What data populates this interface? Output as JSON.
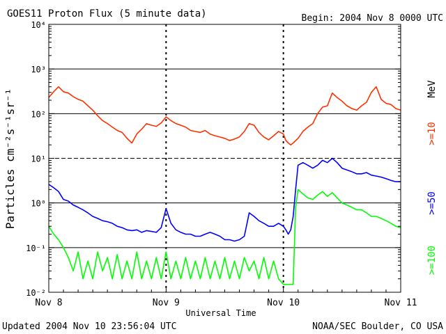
{
  "title": "GOES11 Proton Flux (5 minute data)",
  "begin_label": "Begin: 2004 Nov 8 0000 UTC",
  "updated_label": "Updated 2004 Nov 10 23:56:04 UTC",
  "credit_label": "NOAA/SEC Boulder, CO USA",
  "colors": {
    "ten_mev": "#ff3000",
    "fifty_mev": "#0000ff",
    "hundred_mev": "#00ff00"
  },
  "chart_data": {
    "type": "line",
    "title": "GOES11 Proton Flux (5 minute data)",
    "xlabel": "Universal Time",
    "ylabel": "Particles cm⁻²s⁻¹sr⁻¹",
    "y_scale": "log",
    "xlim": [
      0,
      72
    ],
    "ylim": [
      0.01,
      10000
    ],
    "x_ticks": [
      {
        "hour": 0,
        "label": "Nov 8"
      },
      {
        "hour": 24,
        "label": "Nov 9"
      },
      {
        "hour": 48,
        "label": "Nov 10"
      },
      {
        "hour": 72,
        "label": "Nov 11"
      }
    ],
    "y_ticks": [
      {
        "value": 0.01,
        "label": "10⁻²"
      },
      {
        "value": 0.1,
        "label": "10⁻¹"
      },
      {
        "value": 1,
        "label": "10⁰"
      },
      {
        "value": 10,
        "label": "10¹"
      },
      {
        "value": 100,
        "label": "10²"
      },
      {
        "value": 1000,
        "label": "10³"
      },
      {
        "value": 10000,
        "label": "10⁴"
      }
    ],
    "energy_unit": "MeV",
    "series": [
      {
        "name": ">=10",
        "color": "#ff3000",
        "points": [
          [
            0,
            230
          ],
          [
            1,
            310
          ],
          [
            2,
            400
          ],
          [
            3,
            310
          ],
          [
            4,
            290
          ],
          [
            5,
            240
          ],
          [
            6,
            210
          ],
          [
            7,
            190
          ],
          [
            8,
            150
          ],
          [
            9,
            120
          ],
          [
            10,
            90
          ],
          [
            11,
            70
          ],
          [
            12,
            60
          ],
          [
            13,
            50
          ],
          [
            14,
            42
          ],
          [
            15,
            38
          ],
          [
            16,
            28
          ],
          [
            17,
            22
          ],
          [
            18,
            35
          ],
          [
            19,
            45
          ],
          [
            20,
            60
          ],
          [
            21,
            55
          ],
          [
            22,
            52
          ],
          [
            23,
            62
          ],
          [
            24,
            85
          ],
          [
            25,
            70
          ],
          [
            26,
            60
          ],
          [
            27,
            55
          ],
          [
            28,
            50
          ],
          [
            29,
            42
          ],
          [
            30,
            40
          ],
          [
            31,
            38
          ],
          [
            32,
            42
          ],
          [
            33,
            35
          ],
          [
            34,
            32
          ],
          [
            35,
            30
          ],
          [
            36,
            28
          ],
          [
            37,
            25
          ],
          [
            38,
            27
          ],
          [
            39,
            30
          ],
          [
            40,
            40
          ],
          [
            41,
            60
          ],
          [
            42,
            55
          ],
          [
            43,
            38
          ],
          [
            44,
            30
          ],
          [
            45,
            26
          ],
          [
            46,
            32
          ],
          [
            47,
            40
          ],
          [
            48,
            35
          ],
          [
            48.5,
            25
          ],
          [
            49,
            22
          ],
          [
            49.5,
            20
          ],
          [
            50,
            22
          ],
          [
            51,
            28
          ],
          [
            52,
            40
          ],
          [
            53,
            50
          ],
          [
            54,
            60
          ],
          [
            55,
            100
          ],
          [
            56,
            140
          ],
          [
            57,
            150
          ],
          [
            58,
            290
          ],
          [
            59,
            230
          ],
          [
            60,
            190
          ],
          [
            61,
            150
          ],
          [
            62,
            130
          ],
          [
            63,
            120
          ],
          [
            64,
            150
          ],
          [
            65,
            180
          ],
          [
            66,
            300
          ],
          [
            67,
            400
          ],
          [
            68,
            210
          ],
          [
            69,
            170
          ],
          [
            70,
            160
          ],
          [
            71,
            130
          ],
          [
            72,
            120
          ]
        ]
      },
      {
        "name": ">=50",
        "color": "#0000ff",
        "points": [
          [
            0,
            2.6
          ],
          [
            1,
            2.2
          ],
          [
            2,
            1.8
          ],
          [
            3,
            1.2
          ],
          [
            4,
            1.1
          ],
          [
            5,
            0.9
          ],
          [
            6,
            0.8
          ],
          [
            7,
            0.7
          ],
          [
            8,
            0.6
          ],
          [
            9,
            0.5
          ],
          [
            10,
            0.45
          ],
          [
            11,
            0.4
          ],
          [
            12,
            0.38
          ],
          [
            13,
            0.35
          ],
          [
            14,
            0.3
          ],
          [
            15,
            0.28
          ],
          [
            16,
            0.25
          ],
          [
            17,
            0.24
          ],
          [
            18,
            0.25
          ],
          [
            19,
            0.22
          ],
          [
            20,
            0.24
          ],
          [
            21,
            0.23
          ],
          [
            22,
            0.22
          ],
          [
            23,
            0.28
          ],
          [
            24,
            0.75
          ],
          [
            25,
            0.35
          ],
          [
            26,
            0.25
          ],
          [
            27,
            0.22
          ],
          [
            28,
            0.2
          ],
          [
            29,
            0.2
          ],
          [
            30,
            0.18
          ],
          [
            31,
            0.18
          ],
          [
            32,
            0.2
          ],
          [
            33,
            0.22
          ],
          [
            34,
            0.2
          ],
          [
            35,
            0.18
          ],
          [
            36,
            0.15
          ],
          [
            37,
            0.15
          ],
          [
            38,
            0.14
          ],
          [
            39,
            0.15
          ],
          [
            40,
            0.18
          ],
          [
            41,
            0.6
          ],
          [
            42,
            0.5
          ],
          [
            43,
            0.4
          ],
          [
            44,
            0.35
          ],
          [
            45,
            0.3
          ],
          [
            46,
            0.3
          ],
          [
            47,
            0.35
          ],
          [
            48,
            0.3
          ],
          [
            48.5,
            0.25
          ],
          [
            49,
            0.2
          ],
          [
            49.5,
            0.25
          ],
          [
            50,
            0.5
          ],
          [
            50.5,
            2
          ],
          [
            51,
            7
          ],
          [
            52,
            8
          ],
          [
            53,
            7
          ],
          [
            54,
            6
          ],
          [
            55,
            7
          ],
          [
            56,
            9
          ],
          [
            57,
            8
          ],
          [
            58,
            10
          ],
          [
            59,
            8
          ],
          [
            60,
            6
          ],
          [
            61,
            5.5
          ],
          [
            62,
            5
          ],
          [
            63,
            4.5
          ],
          [
            64,
            4.5
          ],
          [
            65,
            4.8
          ],
          [
            66,
            4.2
          ],
          [
            67,
            4
          ],
          [
            68,
            3.8
          ],
          [
            69,
            3.5
          ],
          [
            70,
            3.2
          ],
          [
            71,
            3
          ],
          [
            72,
            3
          ]
        ]
      },
      {
        "name": ">=100",
        "color": "#00ff00",
        "points": [
          [
            0,
            0.3
          ],
          [
            1,
            0.2
          ],
          [
            2,
            0.15
          ],
          [
            3,
            0.1
          ],
          [
            4,
            0.06
          ],
          [
            5,
            0.03
          ],
          [
            6,
            0.08
          ],
          [
            7,
            0.02
          ],
          [
            8,
            0.05
          ],
          [
            9,
            0.02
          ],
          [
            10,
            0.08
          ],
          [
            11,
            0.03
          ],
          [
            12,
            0.06
          ],
          [
            13,
            0.02
          ],
          [
            14,
            0.07
          ],
          [
            15,
            0.02
          ],
          [
            16,
            0.05
          ],
          [
            17,
            0.02
          ],
          [
            18,
            0.08
          ],
          [
            19,
            0.02
          ],
          [
            20,
            0.05
          ],
          [
            21,
            0.02
          ],
          [
            22,
            0.06
          ],
          [
            23,
            0.02
          ],
          [
            24,
            0.08
          ],
          [
            25,
            0.02
          ],
          [
            26,
            0.05
          ],
          [
            27,
            0.02
          ],
          [
            28,
            0.06
          ],
          [
            29,
            0.02
          ],
          [
            30,
            0.05
          ],
          [
            31,
            0.02
          ],
          [
            32,
            0.06
          ],
          [
            33,
            0.02
          ],
          [
            34,
            0.05
          ],
          [
            35,
            0.02
          ],
          [
            36,
            0.06
          ],
          [
            37,
            0.02
          ],
          [
            38,
            0.05
          ],
          [
            39,
            0.02
          ],
          [
            40,
            0.06
          ],
          [
            41,
            0.03
          ],
          [
            42,
            0.05
          ],
          [
            43,
            0.02
          ],
          [
            44,
            0.06
          ],
          [
            45,
            0.02
          ],
          [
            46,
            0.05
          ],
          [
            47,
            0.02
          ],
          [
            48,
            0.015
          ],
          [
            49,
            0.015
          ],
          [
            50,
            0.015
          ],
          [
            50.5,
            0.8
          ],
          [
            51,
            2
          ],
          [
            52,
            1.6
          ],
          [
            53,
            1.3
          ],
          [
            54,
            1.2
          ],
          [
            55,
            1.5
          ],
          [
            56,
            1.8
          ],
          [
            57,
            1.4
          ],
          [
            58,
            1.7
          ],
          [
            59,
            1.3
          ],
          [
            60,
            1
          ],
          [
            61,
            0.9
          ],
          [
            62,
            0.8
          ],
          [
            63,
            0.7
          ],
          [
            64,
            0.7
          ],
          [
            65,
            0.6
          ],
          [
            66,
            0.5
          ],
          [
            67,
            0.5
          ],
          [
            68,
            0.45
          ],
          [
            69,
            0.4
          ],
          [
            70,
            0.35
          ],
          [
            71,
            0.3
          ],
          [
            72,
            0.28
          ]
        ]
      }
    ]
  }
}
